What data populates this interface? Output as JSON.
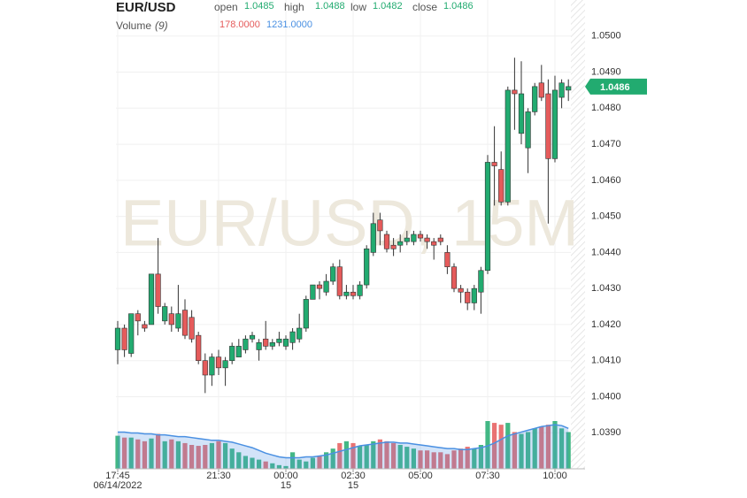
{
  "chart_data": {
    "type": "candlestick",
    "title": "EUR/USD",
    "watermark": "EUR/USD, 15M",
    "header_labels": {
      "open": "open",
      "high": "high",
      "low": "low",
      "close": "close"
    },
    "categories": [
      "17:45",
      null,
      null,
      null,
      null,
      null,
      null,
      null,
      null,
      null,
      null,
      null,
      null,
      null,
      null,
      "21:30",
      null,
      null,
      null,
      null,
      null,
      null,
      null,
      null,
      null,
      "00:00",
      null,
      null,
      null,
      null,
      null,
      null,
      null,
      null,
      null,
      "02:30",
      null,
      null,
      null,
      null,
      null,
      null,
      null,
      null,
      null,
      "05:00",
      null,
      null,
      null,
      null,
      null,
      null,
      null,
      null,
      null,
      "07:30",
      null,
      null,
      null,
      null,
      null,
      null,
      null,
      null,
      null,
      "10:00",
      null,
      null
    ],
    "category_sublabels": [
      "06/14/2022",
      null,
      null,
      null,
      null,
      null,
      null,
      null,
      null,
      null,
      null,
      null,
      null,
      null,
      null,
      null,
      null,
      null,
      null,
      null,
      null,
      null,
      null,
      null,
      null,
      "15",
      null,
      null,
      null,
      null,
      null,
      null,
      null,
      null,
      null,
      "15",
      null,
      null,
      null,
      null,
      null,
      null,
      null,
      null,
      null,
      null,
      null,
      null,
      null,
      null,
      null,
      null,
      null,
      null,
      null,
      null,
      null,
      null,
      null,
      null,
      null,
      null,
      null,
      null,
      null,
      null,
      null,
      null
    ],
    "open": [
      1.0413,
      1.0419,
      1.0412,
      1.0423,
      1.042,
      1.042,
      1.0434,
      1.0421,
      1.0423,
      1.0419,
      1.0424,
      1.0422,
      1.0417,
      1.041,
      1.0406,
      1.0411,
      1.0408,
      1.041,
      1.0411,
      1.0413,
      1.0416,
      1.0413,
      1.0416,
      1.0414,
      1.0415,
      1.0414,
      1.0415,
      1.0416,
      1.0419,
      1.0427,
      1.0431,
      1.0429,
      1.0432,
      1.0436,
      1.0428,
      1.0429,
      1.0428,
      1.0431,
      1.044,
      1.0449,
      1.0445,
      1.0442,
      1.0442,
      1.0443,
      1.0443,
      1.0445,
      1.0444,
      1.0443,
      1.0444,
      1.044,
      1.0436,
      1.043,
      1.0429,
      1.0426,
      1.0429,
      1.0435,
      1.0465,
      1.0463,
      1.0454,
      1.0485,
      1.0473,
      1.0469,
      1.0479,
      1.0487,
      1.0484,
      1.0466,
      1.0483,
      1.0485
    ],
    "high": [
      1.0421,
      1.042,
      1.0423,
      1.0424,
      1.0421,
      1.0434,
      1.0444,
      1.0426,
      1.0425,
      1.0431,
      1.0427,
      1.0424,
      1.0418,
      1.0412,
      1.0412,
      1.0413,
      1.0411,
      1.0415,
      1.0416,
      1.0417,
      1.0418,
      1.0416,
      1.0421,
      1.0416,
      1.0418,
      1.0417,
      1.0419,
      1.0423,
      1.0428,
      1.0431,
      1.0432,
      1.0434,
      1.0437,
      1.0438,
      1.0431,
      1.0431,
      1.0432,
      1.0442,
      1.0451,
      1.0451,
      1.0446,
      1.0444,
      1.0445,
      1.0446,
      1.0446,
      1.0446,
      1.0445,
      1.0444,
      1.0445,
      1.0442,
      1.0437,
      1.0431,
      1.043,
      1.0431,
      1.0436,
      1.0467,
      1.0475,
      1.0468,
      1.0486,
      1.0494,
      1.0493,
      1.048,
      1.0487,
      1.0492,
      1.0488,
      1.0489,
      1.0488,
      1.0488
    ],
    "low": [
      1.0409,
      1.0411,
      1.0411,
      1.0417,
      1.0418,
      1.042,
      1.0423,
      1.042,
      1.0418,
      1.0418,
      1.0416,
      1.0415,
      1.0409,
      1.0401,
      1.0403,
      1.0406,
      1.0403,
      1.0409,
      1.0411,
      1.0412,
      1.0415,
      1.041,
      1.0413,
      1.0413,
      1.0414,
      1.0413,
      1.0413,
      1.0415,
      1.0418,
      1.0427,
      1.0427,
      1.0428,
      1.0431,
      1.0427,
      1.0427,
      1.0427,
      1.0427,
      1.043,
      1.0439,
      1.0442,
      1.044,
      1.0439,
      1.044,
      1.0442,
      1.0442,
      1.0443,
      1.0441,
      1.0438,
      1.0442,
      1.0434,
      1.0429,
      1.0426,
      1.0424,
      1.0424,
      1.0423,
      1.0434,
      1.0453,
      1.0453,
      1.0453,
      1.0474,
      1.047,
      1.0462,
      1.0478,
      1.0482,
      1.0448,
      1.0465,
      1.048,
      1.0482
    ],
    "close": [
      1.0419,
      1.0413,
      1.0423,
      1.0421,
      1.0419,
      1.0434,
      1.0425,
      1.0425,
      1.042,
      1.0423,
      1.0417,
      1.0416,
      1.041,
      1.0406,
      1.0411,
      1.0408,
      1.041,
      1.0414,
      1.0414,
      1.0416,
      1.0417,
      1.0415,
      1.0414,
      1.0415,
      1.0416,
      1.0416,
      1.0418,
      1.0419,
      1.0427,
      1.0431,
      1.043,
      1.0432,
      1.0436,
      1.0428,
      1.0429,
      1.0428,
      1.0431,
      1.0441,
      1.0448,
      1.0446,
      1.0441,
      1.0441,
      1.0443,
      1.0444,
      1.0445,
      1.0444,
      1.0443,
      1.0442,
      1.0443,
      1.0436,
      1.043,
      1.0429,
      1.0426,
      1.043,
      1.0435,
      1.0465,
      1.0464,
      1.0454,
      1.0485,
      1.0484,
      1.0484,
      1.0479,
      1.0486,
      1.0483,
      1.0466,
      1.0485,
      1.0487,
      1.0486
    ],
    "up_color": "#22ab70",
    "down_color": "#e55b5b",
    "ylim": [
      1.038,
      1.051
    ],
    "yticks": [
      {
        "value": 1.05,
        "label": "1.0500"
      },
      {
        "value": 1.049,
        "label": "1.0490"
      },
      {
        "value": 1.048,
        "label": "1.0480"
      },
      {
        "value": 1.047,
        "label": "1.0470"
      },
      {
        "value": 1.046,
        "label": "1.0460"
      },
      {
        "value": 1.045,
        "label": "1.0450"
      },
      {
        "value": 1.044,
        "label": "1.0440"
      },
      {
        "value": 1.043,
        "label": "1.0430"
      },
      {
        "value": 1.042,
        "label": "1.0420"
      },
      {
        "value": 1.041,
        "label": "1.0410"
      },
      {
        "value": 1.04,
        "label": "1.0400"
      },
      {
        "value": 1.039,
        "label": "1.0390"
      }
    ],
    "grid": true,
    "volume": {
      "title": "Volume",
      "period_label": "(9)",
      "value_label": "178.0000",
      "ma_label": "1231.0000",
      "ma_color": "#4a90e2",
      "values": [
        36,
        34,
        34,
        32,
        30,
        33,
        38,
        30,
        32,
        30,
        28,
        26,
        25,
        26,
        28,
        30,
        28,
        22,
        18,
        14,
        12,
        10,
        8,
        6,
        4,
        3,
        18,
        10,
        8,
        12,
        14,
        18,
        22,
        28,
        30,
        28,
        25,
        26,
        30,
        32,
        30,
        28,
        26,
        24,
        22,
        20,
        20,
        18,
        18,
        16,
        20,
        22,
        24,
        22,
        26,
        52,
        50,
        48,
        50,
        40,
        38,
        40,
        44,
        46,
        48,
        52,
        44,
        40
      ],
      "ma_values": [
        40,
        40,
        39,
        39,
        38,
        38,
        37,
        37,
        36,
        35,
        35,
        34,
        33,
        32,
        31,
        31,
        30,
        29,
        27,
        25,
        23,
        20,
        17,
        15,
        13,
        12,
        12,
        12,
        13,
        13,
        14,
        15,
        17,
        19,
        21,
        23,
        25,
        26,
        27,
        28,
        29,
        29,
        28,
        28,
        27,
        26,
        25,
        24,
        23,
        22,
        22,
        21,
        21,
        22,
        23,
        25,
        28,
        32,
        36,
        38,
        40,
        42,
        44,
        46,
        47,
        48,
        47,
        44
      ]
    }
  }
}
